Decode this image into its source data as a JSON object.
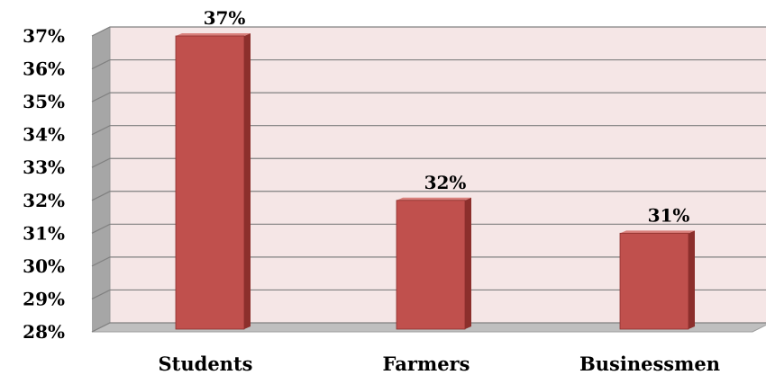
{
  "chart_data": {
    "type": "bar",
    "categories": [
      "Students",
      "Farmers",
      "Businessmen"
    ],
    "values": [
      37,
      32,
      31
    ],
    "data_labels": [
      "37%",
      "32%",
      "31%"
    ],
    "ylim": [
      28,
      37
    ],
    "y_ticks": [
      28,
      29,
      30,
      31,
      32,
      33,
      34,
      35,
      36,
      37
    ],
    "y_tick_labels": [
      "28%",
      "29%",
      "30%",
      "31%",
      "32%",
      "33%",
      "34%",
      "35%",
      "36%",
      "37%"
    ],
    "grid": true,
    "style": "3d-bar",
    "colors": {
      "bar_front": "#c0504d",
      "bar_side": "#8c2f2c",
      "bar_top": "#d9807c",
      "wall": "#f5e6e6",
      "side_wall": "#a6a6a6",
      "floor": "#bfbfbf",
      "grid": "#808080"
    }
  }
}
